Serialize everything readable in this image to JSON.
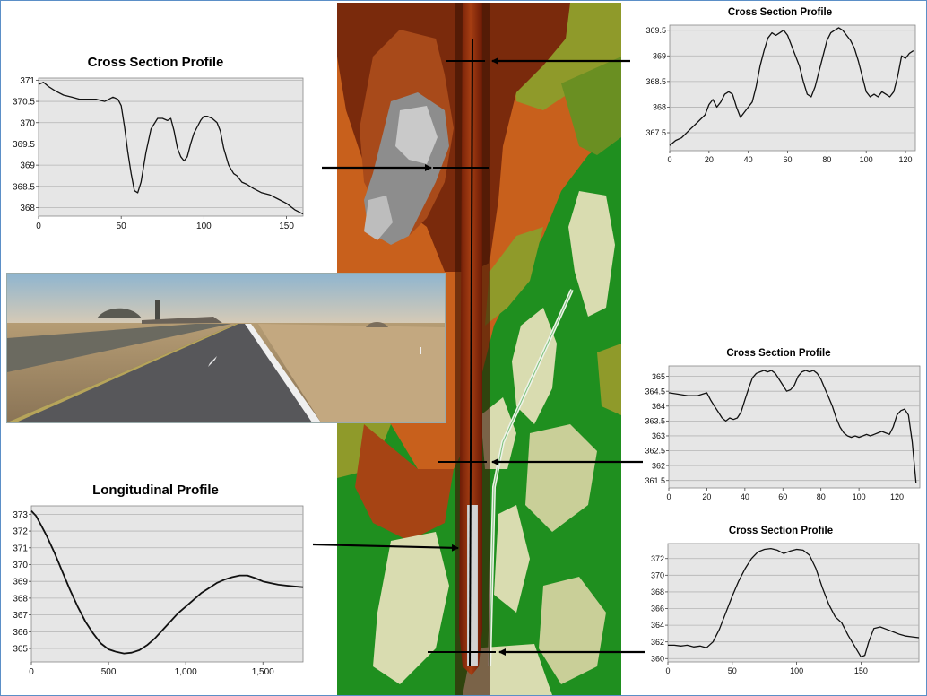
{
  "colors": {
    "plot_bg": "#e6e6e6",
    "grid": "#b4b4b4",
    "line": "#111111",
    "arrow": "#000000",
    "border": "#5b8fc7",
    "raster_orange": "#c8601c",
    "raster_brown": "#7a2a0c",
    "raster_olive": "#8f9a2a",
    "raster_green": "#1f8f1f",
    "raster_cream": "#d9dcb0",
    "raster_gray": "#b8b8b8"
  },
  "chart_data": [
    {
      "id": "cs_top_left",
      "type": "line",
      "title": "Cross Section Profile",
      "xlim": [
        0,
        160
      ],
      "ylim": [
        367.8,
        371.05
      ],
      "xticks": [
        0,
        50,
        100,
        150
      ],
      "xtick_labels": [
        "0",
        "50",
        "100",
        "150"
      ],
      "yticks": [
        368,
        368.5,
        369,
        369.5,
        370,
        370.5,
        371
      ],
      "ytick_labels": [
        "368",
        "368.5",
        "369",
        "369.5",
        "370",
        "370.5",
        "371"
      ],
      "x": [
        0,
        3,
        6,
        10,
        15,
        20,
        25,
        30,
        35,
        40,
        45,
        48,
        50,
        52,
        54,
        56,
        58,
        60,
        62,
        65,
        68,
        72,
        75,
        78,
        80,
        82,
        84,
        86,
        88,
        90,
        92,
        94,
        96,
        98,
        100,
        102,
        105,
        108,
        110,
        112,
        115,
        118,
        120,
        123,
        126,
        130,
        135,
        140,
        145,
        150,
        155,
        160
      ],
      "y": [
        370.9,
        370.95,
        370.85,
        370.75,
        370.65,
        370.6,
        370.55,
        370.55,
        370.55,
        370.5,
        370.6,
        370.55,
        370.4,
        369.9,
        369.3,
        368.8,
        368.4,
        368.35,
        368.6,
        369.3,
        369.85,
        370.1,
        370.1,
        370.05,
        370.1,
        369.8,
        369.4,
        369.2,
        369.1,
        369.2,
        369.5,
        369.75,
        369.9,
        370.05,
        370.15,
        370.15,
        370.1,
        370.0,
        369.8,
        369.4,
        369.0,
        368.8,
        368.75,
        368.6,
        368.55,
        368.45,
        368.35,
        368.3,
        368.2,
        368.1,
        367.95,
        367.85
      ]
    },
    {
      "id": "cs_top_right",
      "type": "line",
      "title": "Cross Section Profile",
      "xlim": [
        0,
        125
      ],
      "ylim": [
        367.15,
        369.6
      ],
      "xticks": [
        0,
        20,
        40,
        60,
        80,
        100,
        120
      ],
      "xtick_labels": [
        "0",
        "20",
        "40",
        "60",
        "80",
        "100",
        "120"
      ],
      "yticks": [
        367.5,
        368,
        368.5,
        369,
        369.5
      ],
      "ytick_labels": [
        "367.5",
        "368",
        "368.5",
        "369",
        "369.5"
      ],
      "x": [
        0,
        3,
        6,
        10,
        14,
        18,
        20,
        22,
        24,
        26,
        28,
        30,
        32,
        34,
        36,
        38,
        40,
        42,
        44,
        46,
        48,
        50,
        52,
        54,
        56,
        58,
        60,
        62,
        64,
        66,
        68,
        70,
        72,
        74,
        76,
        78,
        80,
        82,
        84,
        86,
        88,
        90,
        92,
        94,
        96,
        98,
        100,
        102,
        104,
        106,
        108,
        110,
        112,
        114,
        116,
        118,
        120,
        122,
        124
      ],
      "y": [
        367.25,
        367.35,
        367.4,
        367.55,
        367.7,
        367.85,
        368.05,
        368.15,
        368.0,
        368.1,
        368.25,
        368.3,
        368.25,
        368.0,
        367.8,
        367.9,
        368.0,
        368.1,
        368.4,
        368.8,
        369.1,
        369.35,
        369.45,
        369.4,
        369.45,
        369.5,
        369.4,
        369.2,
        369.0,
        368.8,
        368.5,
        368.25,
        368.2,
        368.4,
        368.7,
        369.0,
        369.3,
        369.45,
        369.5,
        369.55,
        369.5,
        369.4,
        369.3,
        369.15,
        368.9,
        368.6,
        368.3,
        368.2,
        368.25,
        368.2,
        368.3,
        368.25,
        368.2,
        368.3,
        368.6,
        369.0,
        368.95,
        369.05,
        369.1
      ]
    },
    {
      "id": "cs_mid_right",
      "type": "line",
      "title": "Cross Section Profile",
      "xlim": [
        0,
        132
      ],
      "ylim": [
        361.25,
        365.35
      ],
      "xticks": [
        0,
        20,
        40,
        60,
        80,
        100,
        120
      ],
      "xtick_labels": [
        "0",
        "20",
        "40",
        "60",
        "80",
        "100",
        "120"
      ],
      "yticks": [
        361.5,
        362,
        362.5,
        363,
        363.5,
        364,
        364.5,
        365
      ],
      "ytick_labels": [
        "361.5",
        "362",
        "362.5",
        "363",
        "363.5",
        "364",
        "364.5",
        "365"
      ],
      "x": [
        0,
        5,
        10,
        15,
        20,
        22,
        24,
        26,
        28,
        30,
        32,
        34,
        36,
        38,
        40,
        42,
        44,
        46,
        48,
        50,
        52,
        54,
        56,
        58,
        60,
        62,
        64,
        66,
        68,
        70,
        72,
        74,
        76,
        78,
        80,
        82,
        84,
        86,
        88,
        90,
        92,
        94,
        96,
        98,
        100,
        102,
        104,
        106,
        108,
        110,
        112,
        114,
        116,
        118,
        120,
        122,
        124,
        126,
        128,
        130
      ],
      "y": [
        364.45,
        364.4,
        364.35,
        364.35,
        364.45,
        364.2,
        364.0,
        363.8,
        363.6,
        363.5,
        363.6,
        363.55,
        363.6,
        363.8,
        364.2,
        364.6,
        364.95,
        365.1,
        365.15,
        365.2,
        365.15,
        365.2,
        365.1,
        364.9,
        364.7,
        364.5,
        364.55,
        364.7,
        365.0,
        365.15,
        365.2,
        365.15,
        365.2,
        365.1,
        364.9,
        364.6,
        364.3,
        364.0,
        363.6,
        363.3,
        363.1,
        363.0,
        362.95,
        363.0,
        362.95,
        363.0,
        363.05,
        363.0,
        363.05,
        363.1,
        363.15,
        363.1,
        363.05,
        363.3,
        363.7,
        363.85,
        363.9,
        363.7,
        362.8,
        361.4
      ]
    },
    {
      "id": "cs_bottom_right",
      "type": "line",
      "title": "Cross Section Profile",
      "xlim": [
        0,
        195
      ],
      "ylim": [
        359.6,
        373.8
      ],
      "xticks": [
        0,
        50,
        100,
        150
      ],
      "xtick_labels": [
        "0",
        "50",
        "100",
        "150"
      ],
      "yticks": [
        360,
        362,
        364,
        366,
        368,
        370,
        372
      ],
      "ytick_labels": [
        "360",
        "362",
        "364",
        "366",
        "368",
        "370",
        "372"
      ],
      "x": [
        0,
        5,
        10,
        15,
        20,
        25,
        30,
        35,
        40,
        45,
        50,
        55,
        60,
        65,
        70,
        75,
        80,
        85,
        90,
        95,
        100,
        105,
        110,
        115,
        120,
        125,
        130,
        135,
        140,
        145,
        150,
        153,
        156,
        160,
        165,
        170,
        175,
        180,
        185,
        190,
        195
      ],
      "y": [
        361.6,
        361.6,
        361.5,
        361.6,
        361.4,
        361.5,
        361.3,
        362.0,
        363.5,
        365.5,
        367.5,
        369.3,
        370.8,
        372.0,
        372.8,
        373.1,
        373.2,
        373.0,
        372.6,
        372.9,
        373.1,
        373.0,
        372.4,
        370.8,
        368.5,
        366.5,
        365.0,
        364.3,
        362.8,
        361.5,
        360.2,
        360.4,
        362.0,
        363.6,
        363.8,
        363.5,
        363.2,
        362.9,
        362.7,
        362.6,
        362.5
      ]
    },
    {
      "id": "longitudinal",
      "type": "line",
      "title": "Longitudinal Profile",
      "xlim": [
        0,
        1760
      ],
      "ylim": [
        364.2,
        373.5
      ],
      "xticks": [
        0,
        500,
        1000,
        1500
      ],
      "xtick_labels": [
        "0",
        "500",
        "1,000",
        "1,500"
      ],
      "yticks": [
        365,
        366,
        367,
        368,
        369,
        370,
        371,
        372,
        373
      ],
      "ytick_labels": [
        "365",
        "366",
        "367",
        "368",
        "369",
        "370",
        "371",
        "372",
        "373"
      ],
      "x": [
        0,
        30,
        60,
        100,
        150,
        200,
        250,
        300,
        350,
        400,
        450,
        500,
        550,
        600,
        650,
        700,
        750,
        800,
        850,
        900,
        950,
        1000,
        1050,
        1100,
        1150,
        1200,
        1250,
        1300,
        1350,
        1400,
        1450,
        1500,
        1550,
        1600,
        1650,
        1700,
        1760
      ],
      "y": [
        373.2,
        372.9,
        372.4,
        371.7,
        370.7,
        369.6,
        368.5,
        367.5,
        366.6,
        365.9,
        365.3,
        364.95,
        364.8,
        364.7,
        364.75,
        364.9,
        365.2,
        365.6,
        366.1,
        366.6,
        367.1,
        367.5,
        367.9,
        368.3,
        368.6,
        368.9,
        369.1,
        369.25,
        369.35,
        369.35,
        369.2,
        369.0,
        368.9,
        368.8,
        368.75,
        368.7,
        368.65
      ]
    }
  ]
}
